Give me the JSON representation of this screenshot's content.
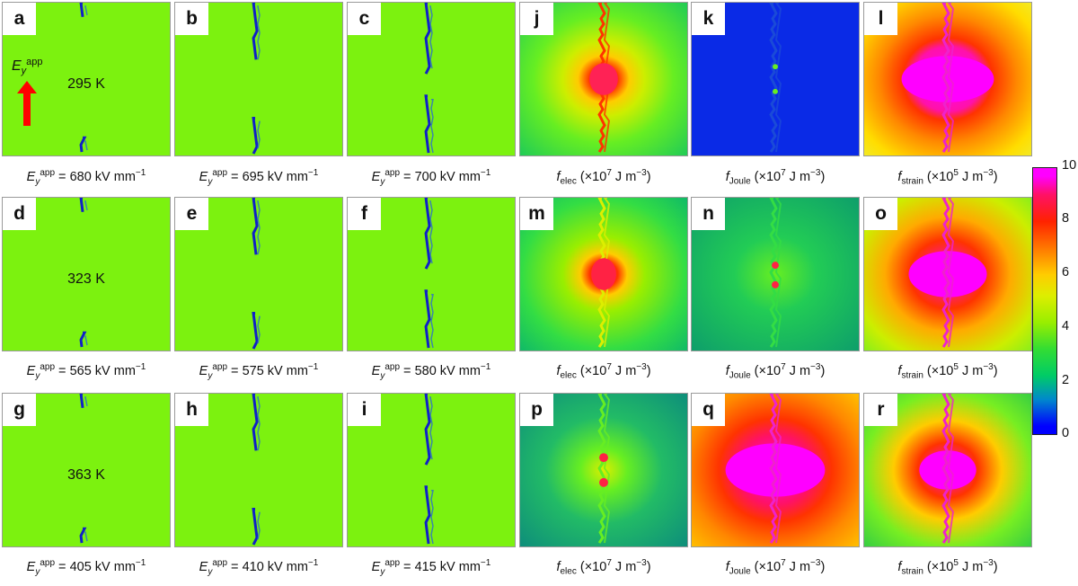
{
  "panels": [
    {
      "id": "a",
      "label": "a",
      "kind": "field",
      "temp": "295 K",
      "crack": 1,
      "caption": {
        "value": "680",
        "unit": "kV mm"
      }
    },
    {
      "id": "b",
      "label": "b",
      "kind": "field",
      "temp": "",
      "crack": 2,
      "caption": {
        "value": "695",
        "unit": "kV mm"
      }
    },
    {
      "id": "c",
      "label": "c",
      "kind": "field",
      "temp": "",
      "crack": 3,
      "caption": {
        "value": "700",
        "unit": "kV mm"
      }
    },
    {
      "id": "j",
      "label": "j",
      "kind": "elec",
      "scheme": "elec1",
      "caption": {
        "sub": "elec",
        "exp": "7"
      }
    },
    {
      "id": "k",
      "label": "k",
      "kind": "joule",
      "scheme": "joule1",
      "caption": {
        "sub": "Joule",
        "exp": "7"
      }
    },
    {
      "id": "l",
      "label": "l",
      "kind": "strain",
      "scheme": "strain1",
      "caption": {
        "sub": "strain",
        "exp": "5"
      }
    },
    {
      "id": "d",
      "label": "d",
      "kind": "field",
      "temp": "323 K",
      "crack": 1,
      "caption": {
        "value": "565",
        "unit": "kV mm"
      }
    },
    {
      "id": "e",
      "label": "e",
      "kind": "field",
      "temp": "",
      "crack": 2,
      "caption": {
        "value": "575",
        "unit": "kV mm"
      }
    },
    {
      "id": "f",
      "label": "f",
      "kind": "field",
      "temp": "",
      "crack": 3,
      "caption": {
        "value": "580",
        "unit": "kV mm"
      }
    },
    {
      "id": "m",
      "label": "m",
      "kind": "elec",
      "scheme": "elec2",
      "caption": {
        "sub": "elec",
        "exp": "7"
      }
    },
    {
      "id": "n",
      "label": "n",
      "kind": "joule",
      "scheme": "joule2",
      "caption": {
        "sub": "Joule",
        "exp": "7"
      }
    },
    {
      "id": "o",
      "label": "o",
      "kind": "strain",
      "scheme": "strain2",
      "caption": {
        "sub": "strain",
        "exp": "5"
      }
    },
    {
      "id": "g",
      "label": "g",
      "kind": "field",
      "temp": "363 K",
      "crack": 1,
      "caption": {
        "value": "405",
        "unit": "kV mm"
      }
    },
    {
      "id": "h",
      "label": "h",
      "kind": "field",
      "temp": "",
      "crack": 2,
      "caption": {
        "value": "410",
        "unit": "kV mm"
      }
    },
    {
      "id": "i",
      "label": "i",
      "kind": "field",
      "temp": "",
      "crack": 3,
      "caption": {
        "value": "415",
        "unit": "kV mm"
      }
    },
    {
      "id": "p",
      "label": "p",
      "kind": "elec",
      "scheme": "elec3",
      "caption": {
        "sub": "elec",
        "exp": "7"
      }
    },
    {
      "id": "q",
      "label": "q",
      "kind": "joule",
      "scheme": "joule3",
      "caption": {
        "sub": "Joule",
        "exp": "7"
      }
    },
    {
      "id": "r",
      "label": "r",
      "kind": "strain",
      "scheme": "strain3",
      "caption": {
        "sub": "strain",
        "exp": "5"
      }
    }
  ],
  "field_symbol": {
    "base": "E",
    "sub": "y",
    "sup": "app"
  },
  "density_unit": "J m",
  "colorbar": {
    "ticks": [
      "10",
      "8",
      "6",
      "4",
      "2",
      "0"
    ],
    "min": 0,
    "max": 10
  },
  "colors": {
    "background_green": "#7cf20f",
    "crack_blue": "#1020c8",
    "arrow_red": "#ff0000"
  }
}
